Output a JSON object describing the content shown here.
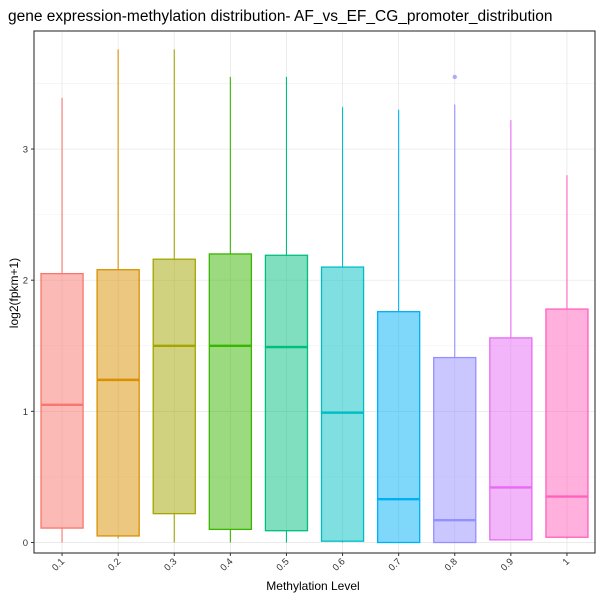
{
  "chart_data": {
    "type": "boxplot",
    "title": "gene expression-methylation distribution- AF_vs_EF_CG_promoter_distribution",
    "xlabel": "Methylation Level",
    "ylabel": "log2(fpkm+1)",
    "ylim": [
      -0.08,
      3.9
    ],
    "y_ticks": [
      0,
      1,
      2,
      3
    ],
    "grid": true,
    "legend": "none",
    "categories": [
      "0.1",
      "0.2",
      "0.3",
      "0.4",
      "0.5",
      "0.6",
      "0.7",
      "0.8",
      "0.9",
      "1"
    ],
    "boxes": [
      {
        "category": "0.1",
        "min": 0.0,
        "q1": 0.11,
        "median": 1.05,
        "q3": 2.05,
        "max": 3.39,
        "outliers": [],
        "color": "#F8766D"
      },
      {
        "category": "0.2",
        "min": 0.03,
        "q1": 0.05,
        "median": 1.24,
        "q3": 2.08,
        "max": 3.76,
        "outliers": [],
        "color": "#D89000"
      },
      {
        "category": "0.3",
        "min": 0.0,
        "q1": 0.22,
        "median": 1.5,
        "q3": 2.16,
        "max": 3.76,
        "outliers": [],
        "color": "#A3A500"
      },
      {
        "category": "0.4",
        "min": 0.0,
        "q1": 0.1,
        "median": 1.5,
        "q3": 2.2,
        "max": 3.55,
        "outliers": [],
        "color": "#39B600"
      },
      {
        "category": "0.5",
        "min": 0.0,
        "q1": 0.09,
        "median": 1.49,
        "q3": 2.19,
        "max": 3.55,
        "outliers": [],
        "color": "#00BF7D"
      },
      {
        "category": "0.6",
        "min": 0.0,
        "q1": 0.01,
        "median": 0.99,
        "q3": 2.1,
        "max": 3.32,
        "outliers": [],
        "color": "#00BFC4"
      },
      {
        "category": "0.7",
        "min": 0.0,
        "q1": 0.0,
        "median": 0.33,
        "q3": 1.76,
        "max": 3.3,
        "outliers": [],
        "color": "#00B0F6"
      },
      {
        "category": "0.8",
        "min": 0.0,
        "q1": 0.0,
        "median": 0.17,
        "q3": 1.41,
        "max": 3.34,
        "outliers": [
          3.55
        ],
        "color": "#9590FF"
      },
      {
        "category": "0.9",
        "min": 0.02,
        "q1": 0.02,
        "median": 0.42,
        "q3": 1.56,
        "max": 3.22,
        "outliers": [],
        "color": "#E76BF3"
      },
      {
        "category": "1",
        "min": 0.03,
        "q1": 0.04,
        "median": 0.35,
        "q3": 1.78,
        "max": 2.8,
        "outliers": [],
        "color": "#FF62BC"
      }
    ]
  }
}
